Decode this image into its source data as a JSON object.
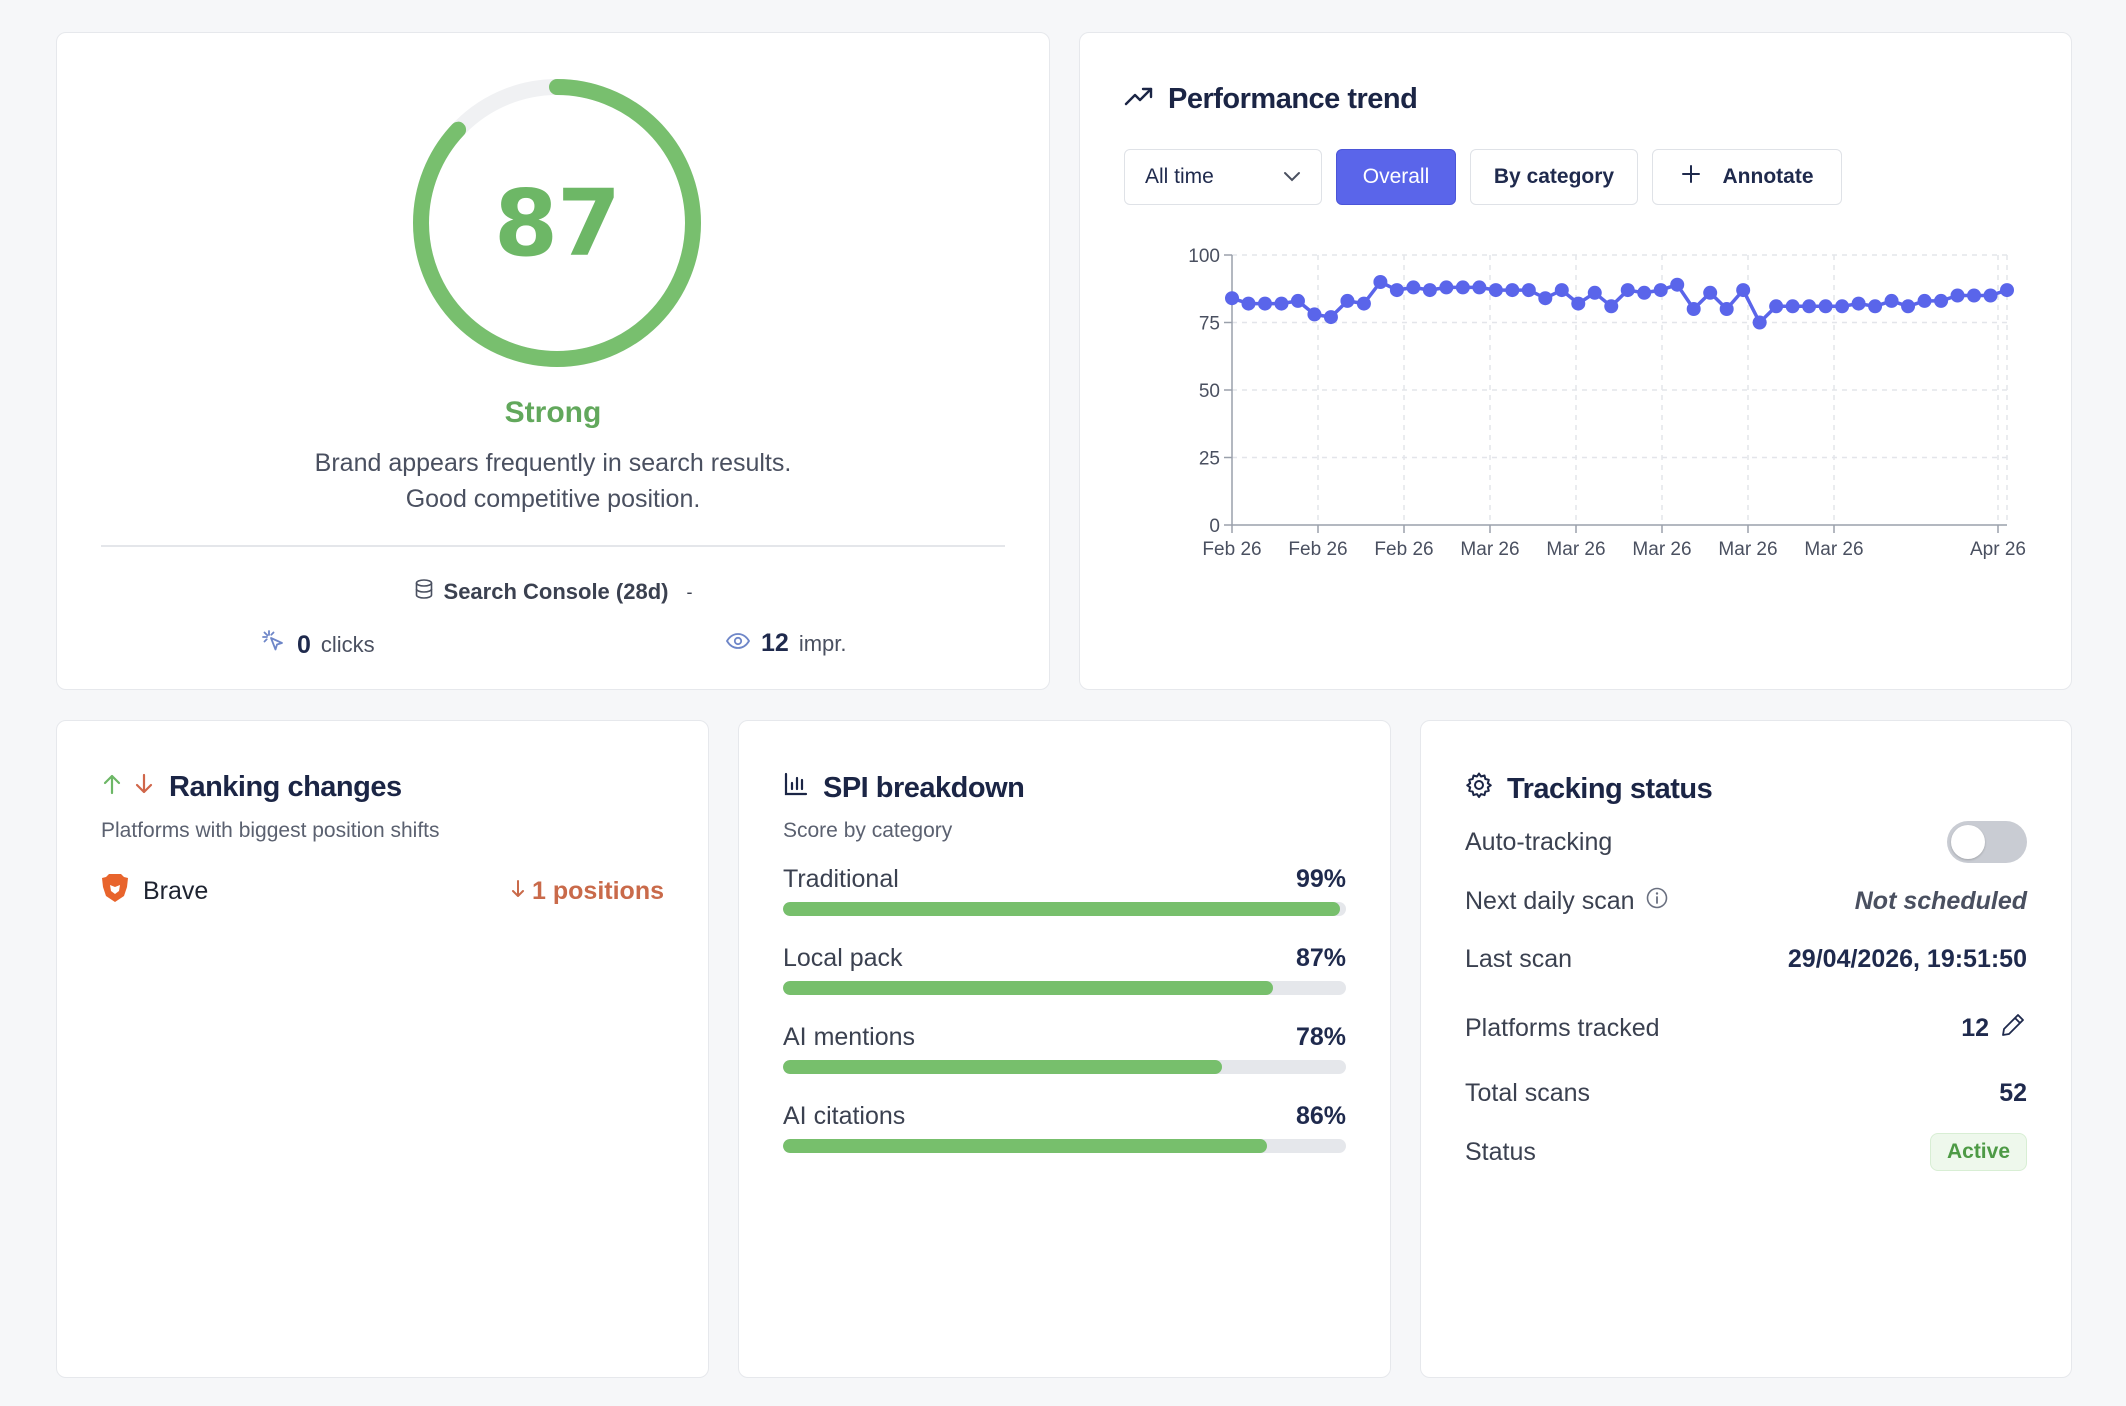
{
  "score_card": {
    "score": "87",
    "score_fraction": 0.87,
    "label": "Strong",
    "description_line1": "Brand appears frequently in search results.",
    "description_line2": "Good competitive position.",
    "source_label": "Search Console (28d)",
    "source_toggle": "-",
    "clicks_value": "0",
    "clicks_label": "clicks",
    "impressions_value": "12",
    "impressions_label": "impr.",
    "accent_color": "#6db766"
  },
  "trend_card": {
    "title": "Performance trend",
    "range_select": "All time",
    "overall_label": "Overall",
    "category_label": "By category",
    "annotate_label": "Annotate"
  },
  "chart_data": {
    "type": "line",
    "title": "",
    "xlabel": "",
    "ylabel": "",
    "ylim": [
      0,
      100
    ],
    "y_ticks": [
      "0",
      "25",
      "50",
      "75",
      "100"
    ],
    "x_tick_labels": [
      "Feb 26",
      "Feb 26",
      "Feb 26",
      "Mar 26",
      "Mar 26",
      "Mar 26",
      "Mar 26",
      "Mar 26",
      "Apr 26"
    ],
    "grid": true,
    "series": [
      {
        "color": "#5a65ea",
        "values": [
          84,
          82,
          82,
          82,
          83,
          78,
          77,
          83,
          82,
          90,
          87,
          88,
          87,
          88,
          88,
          88,
          87,
          87,
          87,
          84,
          87,
          82,
          86,
          81,
          87,
          86,
          87,
          89,
          80,
          86,
          80,
          87,
          75,
          81,
          81,
          81,
          81,
          81,
          82,
          81,
          83,
          81,
          83,
          83,
          85,
          85,
          85,
          87
        ]
      }
    ]
  },
  "ranking_card": {
    "title": "Ranking changes",
    "subtitle": "Platforms with biggest position shifts",
    "items": [
      {
        "platform": "Brave",
        "change": "1 positions",
        "icon": "brave-icon"
      }
    ]
  },
  "spi_card": {
    "title": "SPI breakdown",
    "subtitle": "Score by category",
    "items": [
      {
        "label": "Traditional",
        "pct": "99%",
        "value": 0.99
      },
      {
        "label": "Local pack",
        "pct": "87%",
        "value": 0.87
      },
      {
        "label": "AI mentions",
        "pct": "78%",
        "value": 0.78
      },
      {
        "label": "AI citations",
        "pct": "86%",
        "value": 0.86
      }
    ]
  },
  "tracking_card": {
    "title": "Tracking status",
    "auto_tracking_label": "Auto-tracking",
    "auto_tracking_on": false,
    "next_scan_label": "Next daily scan",
    "next_scan_value": "Not scheduled",
    "last_scan_label": "Last scan",
    "last_scan_value": "29/04/2026, 19:51:50",
    "platforms_label": "Platforms tracked",
    "platforms_value": "12",
    "total_scans_label": "Total scans",
    "total_scans_value": "52",
    "status_label": "Status",
    "status_value": "Active"
  }
}
